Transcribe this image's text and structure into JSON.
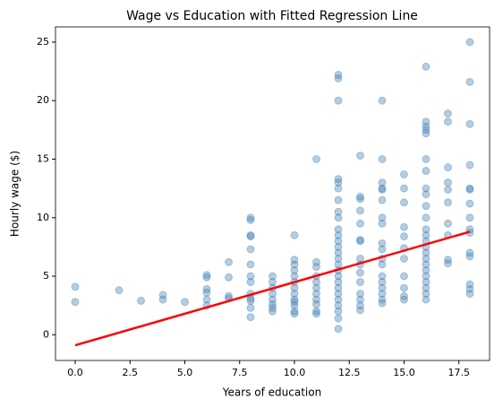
{
  "chart_data": {
    "type": "scatter",
    "title": "Wage vs Education with Fitted Regression Line",
    "x_label": "Years of education",
    "y_label": "Hourly wage ($)",
    "xlim": [
      -0.9,
      18.9
    ],
    "ylim": [
      -2.2,
      26.3
    ],
    "xticks": [
      {
        "value": 0,
        "label": "0.0"
      },
      2.5,
      {
        "value": 5,
        "label": "5.0"
      },
      7.5,
      {
        "value": 10,
        "label": "10.0"
      },
      12.5,
      {
        "value": 15,
        "label": "15.0"
      },
      17.5
    ],
    "yticks": [
      0,
      5,
      10,
      15,
      20,
      25
    ],
    "points": {
      "color": "#4682b4",
      "x": [
        0,
        0,
        2,
        3,
        4,
        4,
        5,
        6,
        6,
        6,
        6,
        6,
        6,
        7,
        7,
        7,
        7,
        8,
        8,
        8,
        8,
        8,
        8,
        8,
        8,
        8,
        8,
        8,
        8,
        8,
        9,
        9,
        9,
        9,
        9,
        9,
        9,
        9,
        10,
        10,
        10,
        10,
        10,
        10,
        10,
        10,
        10,
        10,
        10,
        10,
        10,
        11,
        11,
        11,
        11,
        11,
        11,
        11,
        11,
        11,
        11,
        11,
        12,
        12,
        12,
        12,
        12,
        12,
        12,
        12,
        12,
        12,
        12,
        12,
        12,
        12,
        12,
        12,
        12,
        12,
        12,
        12,
        12,
        12,
        12,
        12,
        12,
        12,
        13,
        13,
        13,
        13,
        13,
        13,
        13,
        13,
        13,
        13,
        13,
        13,
        13,
        13,
        13,
        14,
        14,
        14,
        14,
        14,
        14,
        14,
        14,
        14,
        14,
        14,
        14,
        14,
        14,
        14,
        14,
        14,
        14,
        15,
        15,
        15,
        15,
        15,
        15,
        15,
        15,
        15,
        15,
        15,
        16,
        16,
        16,
        16,
        16,
        16,
        16,
        16,
        16,
        16,
        16,
        16,
        16,
        16,
        16,
        16,
        16,
        16,
        16,
        16,
        16,
        16,
        16,
        16,
        17,
        17,
        17,
        17,
        17,
        17,
        17,
        17,
        17,
        17,
        18,
        18,
        18,
        18,
        18,
        18,
        18,
        18,
        18,
        18,
        18,
        18,
        18,
        18,
        18
      ],
      "y": [
        4.1,
        2.8,
        3.8,
        2.9,
        3.4,
        3.0,
        2.8,
        5.1,
        4.9,
        3.9,
        3.6,
        3.0,
        2.5,
        6.2,
        4.9,
        3.3,
        3.1,
        10.0,
        9.8,
        8.5,
        8.4,
        7.3,
        6.0,
        5.0,
        4.5,
        3.5,
        3.1,
        2.9,
        2.3,
        1.5,
        5.0,
        4.5,
        4.0,
        3.5,
        3.0,
        2.6,
        2.3,
        2.0,
        8.5,
        6.4,
        6.0,
        5.5,
        5.0,
        4.5,
        4.0,
        3.5,
        3.0,
        2.8,
        2.5,
        2.0,
        1.8,
        15.0,
        6.2,
        5.8,
        5.0,
        4.5,
        4.0,
        3.5,
        3.0,
        2.6,
        2.0,
        1.8,
        22.2,
        21.9,
        20.0,
        13.3,
        13.0,
        12.5,
        11.5,
        10.5,
        10.0,
        9.0,
        8.5,
        8.0,
        7.5,
        7.0,
        6.5,
        6.0,
        5.5,
        5.0,
        4.5,
        4.0,
        3.5,
        3.0,
        2.5,
        2.0,
        1.4,
        0.5,
        15.3,
        11.8,
        11.6,
        10.6,
        9.5,
        8.1,
        8.0,
        6.5,
        6.0,
        5.3,
        4.5,
        3.5,
        3.0,
        2.5,
        2.1,
        20.0,
        15.0,
        13.0,
        12.5,
        12.4,
        11.5,
        10.0,
        9.5,
        7.8,
        7.3,
        6.5,
        6.0,
        5.0,
        4.5,
        4.0,
        3.5,
        3.0,
        2.7,
        13.7,
        12.5,
        11.3,
        9.2,
        8.4,
        7.4,
        6.5,
        5.0,
        4.0,
        3.3,
        3.0,
        22.9,
        18.2,
        17.8,
        17.5,
        17.2,
        15.0,
        14.0,
        12.5,
        12.0,
        11.0,
        10.0,
        9.0,
        8.5,
        8.0,
        7.5,
        7.0,
        6.5,
        6.0,
        5.5,
        5.0,
        4.5,
        4.0,
        3.5,
        3.0,
        18.9,
        18.2,
        14.3,
        13.0,
        12.4,
        11.3,
        9.5,
        8.5,
        6.4,
        6.1,
        25.0,
        21.6,
        18.0,
        14.5,
        12.5,
        12.4,
        11.2,
        10.0,
        9.0,
        8.7,
        7.0,
        6.7,
        4.3,
        3.9,
        3.5
      ]
    },
    "fit_line": {
      "color": "#ff0000",
      "x": [
        0,
        18
      ],
      "y": [
        -0.9,
        8.8
      ]
    }
  }
}
